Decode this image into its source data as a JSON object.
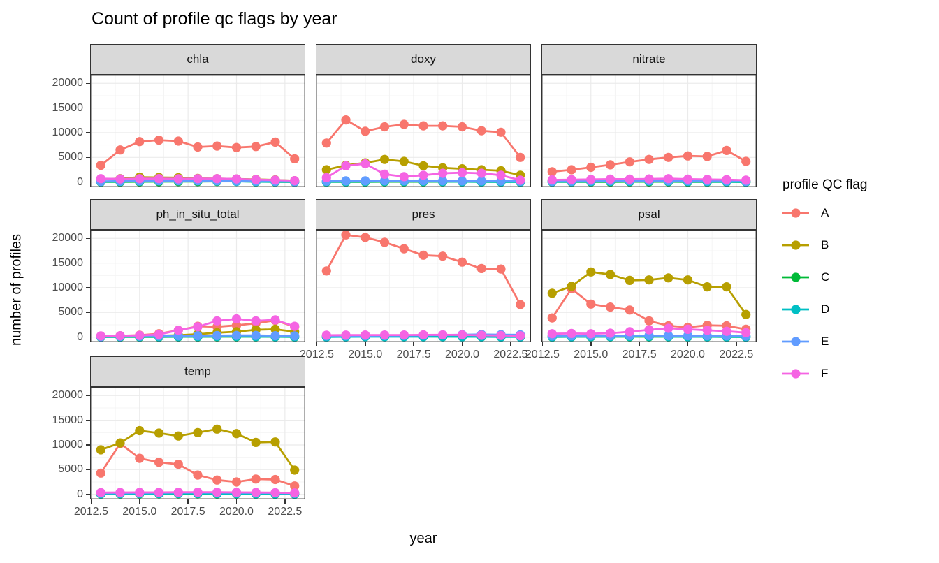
{
  "title": "Count of profile qc flags by year",
  "axes": {
    "x_label": "year",
    "y_label": "number of profiles",
    "x_ticks": [
      "2012.5",
      "2015.0",
      "2017.5",
      "2020.0",
      "2022.5"
    ],
    "x_tick_values": [
      2012.5,
      2015.0,
      2017.5,
      2020.0,
      2022.5
    ],
    "y_ticks": [
      "20000",
      "15000",
      "10000",
      "5000",
      "0"
    ],
    "y_tick_values": [
      20000,
      15000,
      10000,
      5000,
      0
    ]
  },
  "legend": {
    "title": "profile QC flag",
    "entries": [
      {
        "label": "A",
        "color": "#F8766D"
      },
      {
        "label": "B",
        "color": "#B79F00"
      },
      {
        "label": "C",
        "color": "#00BA38"
      },
      {
        "label": "D",
        "color": "#00BFC4"
      },
      {
        "label": "E",
        "color": "#619CFF"
      },
      {
        "label": "F",
        "color": "#F564E3"
      }
    ]
  },
  "style": {
    "strip_bg": "#d9d9d9",
    "panel_border": "#333333",
    "grid_major": "#ebebeb",
    "grid_minor": "#f4f4f4",
    "tick_text": "#4d4d4d"
  },
  "chart_data": {
    "type": "line",
    "title": "Count of profile qc flags by year",
    "xlabel": "year",
    "ylabel": "number of profiles",
    "legend_title": "profile QC flag",
    "legend_position": "right",
    "grid": true,
    "x": [
      2013,
      2014,
      2015,
      2016,
      2017,
      2018,
      2019,
      2020,
      2021,
      2022,
      2023
    ],
    "xlim": [
      2012.45,
      2023.55
    ],
    "ylim": [
      -1035,
      21735
    ],
    "facets": [
      {
        "name": "chla",
        "series": [
          {
            "name": "A",
            "values": [
              3400,
              6500,
              8200,
              8500,
              8300,
              7100,
              7300,
              7000,
              7200,
              8100,
              4700
            ]
          },
          {
            "name": "B",
            "values": [
              600,
              700,
              1000,
              950,
              900,
              750,
              700,
              650,
              550,
              450,
              300
            ]
          },
          {
            "name": "C",
            "values": [
              60,
              60,
              80,
              100,
              120,
              120,
              150,
              200,
              80,
              50,
              30
            ]
          },
          {
            "name": "D",
            "values": [
              100,
              120,
              180,
              250,
              280,
              260,
              220,
              150,
              100,
              80,
              50
            ]
          },
          {
            "name": "E",
            "values": [
              150,
              200,
              250,
              280,
              280,
              280,
              260,
              250,
              200,
              150,
              100
            ]
          },
          {
            "name": "F",
            "values": [
              700,
              650,
              700,
              720,
              680,
              700,
              700,
              650,
              500,
              420,
              300
            ]
          }
        ]
      },
      {
        "name": "doxy",
        "series": [
          {
            "name": "A",
            "values": [
              7900,
              12600,
              10300,
              11200,
              11700,
              11400,
              11400,
              11200,
              10400,
              10100,
              5000
            ]
          },
          {
            "name": "B",
            "values": [
              2500,
              3400,
              3900,
              4600,
              4200,
              3300,
              2900,
              2700,
              2500,
              2300,
              1400
            ]
          },
          {
            "name": "C",
            "values": [
              50,
              60,
              60,
              80,
              80,
              80,
              80,
              80,
              60,
              50,
              40
            ]
          },
          {
            "name": "D",
            "values": [
              80,
              100,
              120,
              150,
              150,
              150,
              120,
              100,
              80,
              60,
              50
            ]
          },
          {
            "name": "E",
            "values": [
              200,
              250,
              250,
              280,
              280,
              280,
              260,
              250,
              250,
              220,
              180
            ]
          },
          {
            "name": "F",
            "values": [
              900,
              3300,
              3700,
              1600,
              1100,
              1400,
              1800,
              1900,
              1800,
              1400,
              400
            ]
          }
        ]
      },
      {
        "name": "nitrate",
        "series": [
          {
            "name": "A",
            "values": [
              2100,
              2500,
              3000,
              3500,
              4100,
              4600,
              5000,
              5300,
              5200,
              6400,
              4200
            ]
          },
          {
            "name": "B",
            "values": [
              300,
              350,
              400,
              450,
              450,
              400,
              350,
              300,
              300,
              250,
              200
            ]
          },
          {
            "name": "C",
            "values": [
              50,
              50,
              60,
              60,
              80,
              80,
              80,
              60,
              50,
              40,
              30
            ]
          },
          {
            "name": "D",
            "values": [
              80,
              100,
              120,
              150,
              150,
              200,
              150,
              120,
              100,
              80,
              60
            ]
          },
          {
            "name": "E",
            "values": [
              150,
              200,
              250,
              280,
              300,
              300,
              280,
              260,
              250,
              220,
              150
            ]
          },
          {
            "name": "F",
            "values": [
              450,
              500,
              550,
              600,
              600,
              650,
              700,
              600,
              550,
              500,
              400
            ]
          }
        ]
      },
      {
        "name": "ph_in_situ_total",
        "series": [
          {
            "name": "A",
            "values": [
              200,
              300,
              400,
              700,
              1400,
              2200,
              2100,
              2400,
              2800,
              3400,
              2100
            ]
          },
          {
            "name": "B",
            "values": [
              100,
              100,
              150,
              300,
              400,
              600,
              900,
              1100,
              1500,
              1600,
              1100
            ]
          },
          {
            "name": "C",
            "values": [
              30,
              40,
              50,
              60,
              80,
              80,
              100,
              100,
              100,
              80,
              50
            ]
          },
          {
            "name": "D",
            "values": [
              50,
              80,
              100,
              100,
              120,
              120,
              150,
              150,
              120,
              100,
              80
            ]
          },
          {
            "name": "E",
            "values": [
              100,
              150,
              200,
              250,
              280,
              300,
              320,
              350,
              350,
              300,
              250
            ]
          },
          {
            "name": "F",
            "values": [
              250,
              300,
              350,
              550,
              1400,
              2100,
              3300,
              3700,
              3300,
              3500,
              2200
            ]
          }
        ]
      },
      {
        "name": "pres",
        "series": [
          {
            "name": "A",
            "values": [
              13400,
              20700,
              20200,
              19200,
              17900,
              16600,
              16400,
              15200,
              13900,
              13800,
              6600
            ]
          },
          {
            "name": "B",
            "values": [
              100,
              120,
              150,
              150,
              150,
              150,
              120,
              120,
              100,
              100,
              80
            ]
          },
          {
            "name": "C",
            "values": [
              100,
              120,
              150,
              150,
              180,
              200,
              250,
              280,
              250,
              200,
              150
            ]
          },
          {
            "name": "D",
            "values": [
              60,
              80,
              100,
              100,
              100,
              100,
              100,
              80,
              80,
              60,
              50
            ]
          },
          {
            "name": "E",
            "values": [
              250,
              280,
              300,
              320,
              350,
              400,
              450,
              500,
              550,
              500,
              480
            ]
          },
          {
            "name": "F",
            "values": [
              400,
              420,
              430,
              430,
              440,
              460,
              480,
              450,
              380,
              330,
              280
            ]
          }
        ]
      },
      {
        "name": "psal",
        "series": [
          {
            "name": "A",
            "values": [
              3900,
              9800,
              6700,
              6100,
              5500,
              3300,
              2300,
              2000,
              2400,
              2300,
              1600
            ]
          },
          {
            "name": "B",
            "values": [
              8900,
              10300,
              13200,
              12700,
              11500,
              11600,
              12000,
              11600,
              10200,
              10200,
              4600
            ]
          },
          {
            "name": "C",
            "values": [
              60,
              80,
              80,
              100,
              100,
              100,
              100,
              80,
              80,
              60,
              50
            ]
          },
          {
            "name": "D",
            "values": [
              80,
              100,
              120,
              120,
              150,
              150,
              120,
              100,
              100,
              80,
              60
            ]
          },
          {
            "name": "E",
            "values": [
              250,
              280,
              300,
              300,
              320,
              320,
              300,
              300,
              280,
              260,
              220
            ]
          },
          {
            "name": "F",
            "values": [
              700,
              750,
              700,
              800,
              1100,
              1500,
              1800,
              1600,
              1400,
              1200,
              900
            ]
          }
        ]
      },
      {
        "name": "temp",
        "series": [
          {
            "name": "A",
            "values": [
              4300,
              10300,
              7300,
              6500,
              6100,
              3900,
              2900,
              2500,
              3100,
              3000,
              1700
            ]
          },
          {
            "name": "B",
            "values": [
              9000,
              10400,
              12900,
              12400,
              11800,
              12500,
              13200,
              12300,
              10500,
              10600,
              4900
            ]
          },
          {
            "name": "C",
            "values": [
              80,
              100,
              100,
              120,
              120,
              120,
              100,
              100,
              80,
              60,
              50
            ]
          },
          {
            "name": "D",
            "values": [
              100,
              120,
              150,
              150,
              180,
              180,
              150,
              120,
              100,
              80,
              60
            ]
          },
          {
            "name": "E",
            "values": [
              250,
              280,
              300,
              320,
              350,
              350,
              350,
              330,
              300,
              280,
              230
            ]
          },
          {
            "name": "F",
            "values": [
              350,
              380,
              400,
              400,
              420,
              430,
              420,
              400,
              380,
              330,
              280
            ]
          }
        ]
      }
    ]
  }
}
